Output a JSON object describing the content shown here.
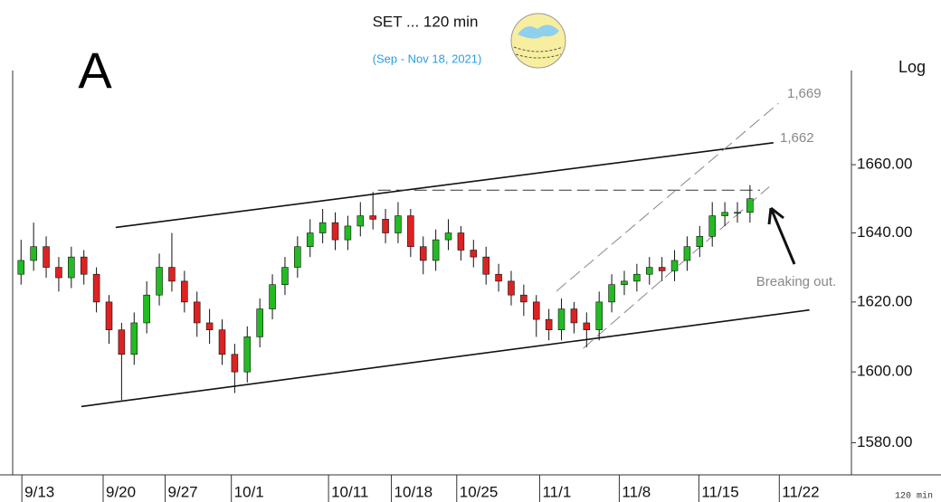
{
  "chart_data": {
    "type": "candlestick",
    "title": "SET ... 120 min",
    "subtitle": "(Sep - Nov 18, 2021)",
    "panel_label": "A",
    "scale_label": "Log",
    "interval_label": "120 min",
    "log_scale": true,
    "up_color": "#22bb22",
    "down_color": "#dd2222",
    "x": [
      1,
      2.5,
      4,
      5.5,
      7,
      8.5,
      10,
      11.5,
      13,
      14.5,
      16,
      17.5,
      19,
      20.5,
      22,
      23.5,
      25,
      26.5,
      28,
      29.5,
      31,
      32.5,
      34,
      35.5,
      37,
      38.5,
      40,
      41.5,
      43,
      44.5,
      46,
      47.5,
      49,
      50.5,
      52,
      53.5,
      55,
      56.5,
      58,
      59.5,
      61,
      62.5,
      64,
      65.5,
      67,
      68.5,
      70,
      71.5,
      73,
      74.5,
      76,
      77.5,
      79,
      80.5,
      82,
      83.5,
      85,
      86.5,
      88
    ],
    "open": [
      1628,
      1632,
      1636,
      1630,
      1627,
      1633,
      1628,
      1620,
      1612,
      1605,
      1614,
      1622,
      1630,
      1626,
      1620,
      1614,
      1612,
      1605,
      1600,
      1610,
      1618,
      1625,
      1630,
      1636,
      1640,
      1643,
      1638,
      1642,
      1645,
      1644,
      1640,
      1645,
      1636,
      1632,
      1638,
      1640,
      1635,
      1633,
      1628,
      1626,
      1622,
      1620,
      1615,
      1612,
      1618,
      1614,
      1612,
      1620,
      1625,
      1626,
      1628,
      1630,
      1629,
      1632,
      1636,
      1639,
      1645,
      1646,
      1646
    ],
    "high": [
      1638,
      1643,
      1639,
      1633,
      1636,
      1635,
      1630,
      1622,
      1614,
      1617,
      1626,
      1634,
      1640,
      1629,
      1623,
      1618,
      1615,
      1608,
      1613,
      1621,
      1628,
      1633,
      1639,
      1644,
      1647,
      1646,
      1645,
      1649,
      1652,
      1647,
      1649,
      1647,
      1639,
      1641,
      1644,
      1642,
      1638,
      1636,
      1631,
      1629,
      1625,
      1622,
      1618,
      1621,
      1620,
      1617,
      1623,
      1628,
      1629,
      1631,
      1633,
      1633,
      1635,
      1639,
      1642,
      1649,
      1649,
      1649,
      1654
    ],
    "low": [
      1625,
      1629,
      1627,
      1623,
      1624,
      1625,
      1617,
      1608,
      1592,
      1602,
      1611,
      1619,
      1623,
      1617,
      1610,
      1608,
      1602,
      1594,
      1597,
      1607,
      1615,
      1622,
      1627,
      1633,
      1637,
      1635,
      1635,
      1639,
      1641,
      1637,
      1637,
      1633,
      1628,
      1629,
      1635,
      1632,
      1630,
      1625,
      1623,
      1619,
      1616,
      1610,
      1609,
      1609,
      1611,
      1607,
      1609,
      1617,
      1622,
      1623,
      1625,
      1626,
      1626,
      1629,
      1633,
      1636,
      1642,
      1643,
      1643
    ],
    "close": [
      1632,
      1636,
      1630,
      1627,
      1633,
      1628,
      1620,
      1612,
      1605,
      1614,
      1622,
      1630,
      1626,
      1620,
      1614,
      1612,
      1605,
      1600,
      1610,
      1618,
      1625,
      1630,
      1636,
      1640,
      1643,
      1638,
      1642,
      1645,
      1644,
      1640,
      1645,
      1636,
      1632,
      1638,
      1640,
      1635,
      1633,
      1628,
      1626,
      1622,
      1620,
      1615,
      1612,
      1618,
      1614,
      1612,
      1620,
      1625,
      1626,
      1628,
      1630,
      1629,
      1632,
      1636,
      1639,
      1645,
      1646,
      1646,
      1650
    ],
    "xlim": [
      0,
      100
    ],
    "ylim": [
      1571,
      1688
    ],
    "yticks": [
      {
        "value": 1580,
        "label": "1580.00"
      },
      {
        "value": 1600,
        "label": "1600.00"
      },
      {
        "value": 1620,
        "label": "1620.00"
      },
      {
        "value": 1640,
        "label": "1640.00"
      },
      {
        "value": 1660,
        "label": "1660.00"
      }
    ],
    "xticks": [
      {
        "value": 1.1,
        "label": "9/13"
      },
      {
        "value": 10.8,
        "label": "9/20"
      },
      {
        "value": 18.2,
        "label": "9/27"
      },
      {
        "value": 26.1,
        "label": "10/1"
      },
      {
        "value": 37.7,
        "label": "10/11"
      },
      {
        "value": 45.2,
        "label": "10/18"
      },
      {
        "value": 53,
        "label": "10/25"
      },
      {
        "value": 62.9,
        "label": "11/1"
      },
      {
        "value": 72.4,
        "label": "11/8"
      },
      {
        "value": 81.9,
        "label": "11/15"
      },
      {
        "value": 91.5,
        "label": "11/22"
      }
    ],
    "trendlines": [
      {
        "x": [
          12.3,
          90.8
        ],
        "y": [
          1641.6,
          1666.5
        ],
        "style": "solid",
        "color": "#111111"
      },
      {
        "x": [
          8.2,
          95.1
        ],
        "y": [
          1590.2,
          1617.7
        ],
        "style": "solid",
        "color": "#111111"
      },
      {
        "x": [
          43.6,
          89.2
        ],
        "y": [
          1652.5,
          1652.5
        ],
        "style": "dashed",
        "color": "#333333"
      },
      {
        "x": [
          64.9,
          91.4
        ],
        "y": [
          1623.1,
          1678.2
        ],
        "style": "dashed",
        "color": "#888888"
      },
      {
        "x": [
          68.1,
          90.3
        ],
        "y": [
          1606.7,
          1653.5
        ],
        "style": "dashed",
        "color": "#888888"
      }
    ],
    "annotations": [
      "1,669",
      "1,662",
      "Breaking out."
    ]
  }
}
